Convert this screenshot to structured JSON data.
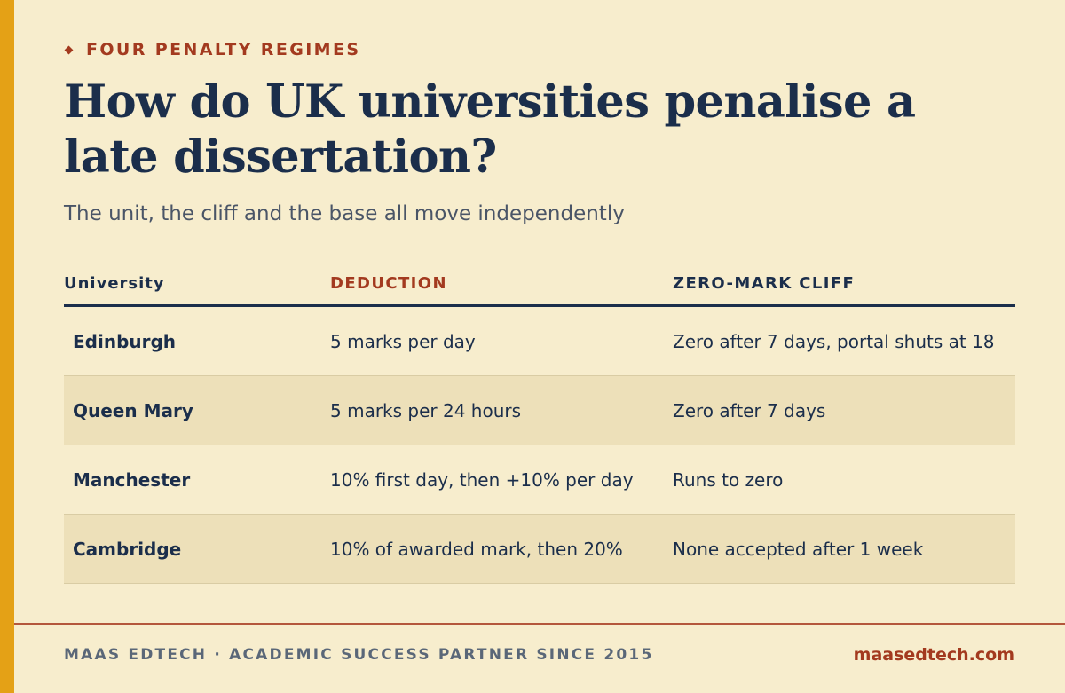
{
  "eyebrow": "FOUR PENALTY REGIMES",
  "title": "How do UK universities penalise a late dissertation?",
  "subtitle": "The unit, the cliff and the base all move independently",
  "table": {
    "headers": [
      "University",
      "DEDUCTION",
      "ZERO-MARK CLIFF"
    ],
    "rows": [
      [
        "Edinburgh",
        "5 marks per day",
        "Zero after 7 days, portal shuts at 18"
      ],
      [
        "Queen Mary",
        "5 marks per 24 hours",
        "Zero after 7 days"
      ],
      [
        "Manchester",
        "10% first day, then +10% per day",
        "Runs to zero"
      ],
      [
        "Cambridge",
        "10% of awarded mark, then 20%",
        "None accepted after 1 week"
      ]
    ]
  },
  "footer": {
    "brand": "MAAS EDTECH · ACADEMIC SUCCESS PARTNER SINCE 2015",
    "url": "maasedtech.com"
  },
  "colors": {
    "background": "#F7EDCD",
    "accent_bar": "#E4A116",
    "navy": "#1B2E4B",
    "rust": "#A33A1F",
    "alt_row": "#EDE0B9"
  }
}
